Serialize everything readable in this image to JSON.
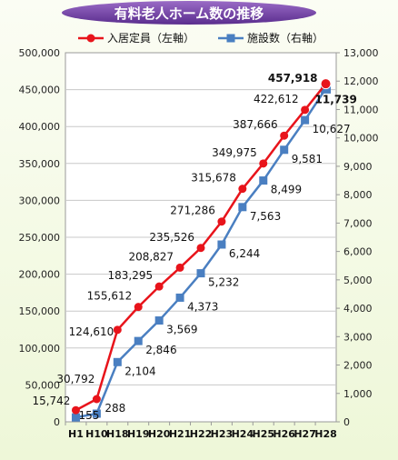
{
  "chart_data": {
    "type": "line",
    "title": "有料老人ホーム数の推移",
    "categories": [
      "H1",
      "H10",
      "H18",
      "H19",
      "H20",
      "H21",
      "H22",
      "H23",
      "H24",
      "H25",
      "H26",
      "H27",
      "H28"
    ],
    "series": [
      {
        "name": "入居定員（左軸）",
        "axis": "left",
        "color": "#e8141b",
        "marker": "circle",
        "values": [
          15742,
          30792,
          124610,
          155612,
          183295,
          208827,
          235526,
          271286,
          315678,
          349975,
          387666,
          422612,
          457918
        ],
        "labels": [
          "15,742",
          "30,792",
          "124,610",
          "155,612",
          "183,295",
          "208,827",
          "235,526",
          "271,286",
          "315,678",
          "349,975",
          "387,666",
          "422,612",
          "457,918"
        ]
      },
      {
        "name": "施設数（右軸）",
        "axis": "right",
        "color": "#4a7fc1",
        "marker": "square",
        "values": [
          155,
          288,
          2104,
          2846,
          3569,
          4373,
          5232,
          6244,
          7563,
          8499,
          9581,
          10627,
          11739
        ],
        "labels": [
          "155",
          "288",
          "2,104",
          "2,846",
          "3,569",
          "4,373",
          "5,232",
          "6,244",
          "7,563",
          "8,499",
          "9,581",
          "10,627",
          "11,739"
        ]
      }
    ],
    "y_left": {
      "min": 0,
      "max": 500000,
      "ticks": [
        "0",
        "50,000",
        "100,000",
        "150,000",
        "200,000",
        "250,000",
        "300,000",
        "350,000",
        "400,000",
        "450,000",
        "500,000"
      ]
    },
    "y_right": {
      "min": 0,
      "max": 13000,
      "ticks": [
        "0",
        "1,000",
        "2,000",
        "3,000",
        "4,000",
        "5,000",
        "6,000",
        "7,000",
        "8,000",
        "9,000",
        "10,000",
        "11,000",
        "12,000",
        "13,000"
      ]
    },
    "grid": "horizontal",
    "legend": "top",
    "highlight_color_left": "#e8141b",
    "highlight_color_right": "#2e5f9e"
  }
}
